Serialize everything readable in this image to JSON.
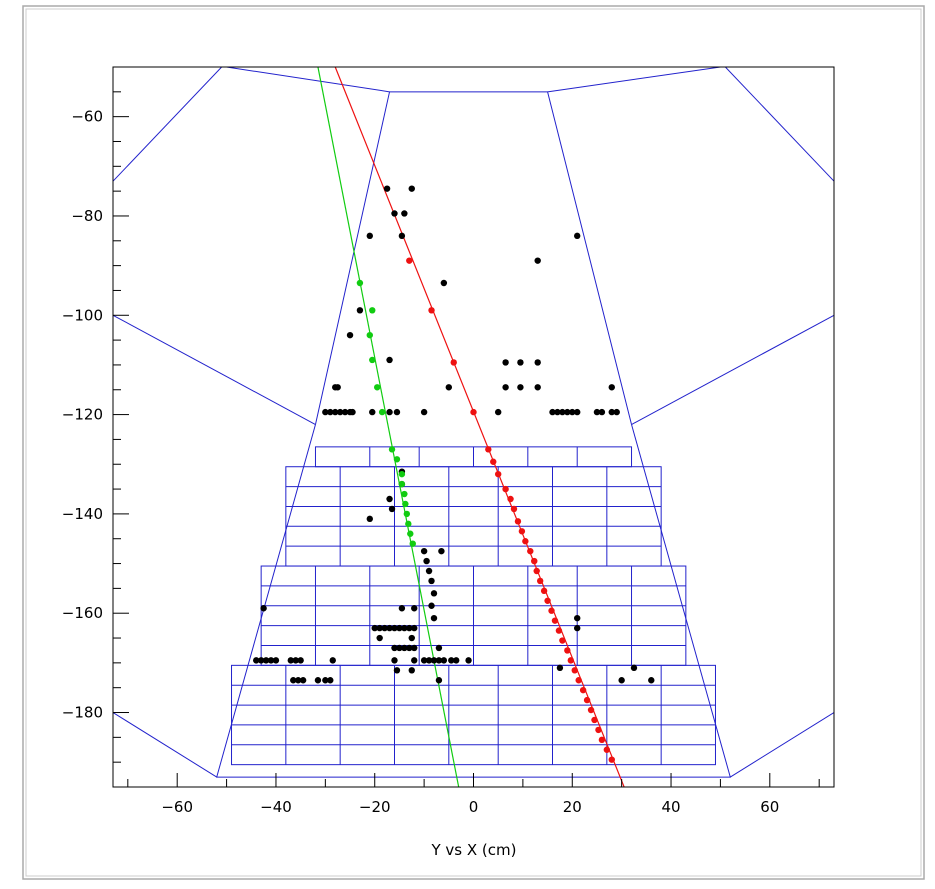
{
  "chart_data": {
    "type": "scatter",
    "xlabel": "Y vs X (cm)",
    "xlim": [
      -73,
      73
    ],
    "ylim": [
      -195,
      -50
    ],
    "xticks": [
      -60,
      -40,
      -20,
      0,
      20,
      40,
      60
    ],
    "yticks": [
      -60,
      -80,
      -100,
      -120,
      -140,
      -160,
      -180
    ],
    "colors": {
      "detector": "#2222cc",
      "fit_red": "#ee1111",
      "fit_green": "#11cc11",
      "hits": "#000000",
      "frame": "#aaaaaa"
    },
    "series": [
      {
        "color": "#000000",
        "points": [
          [
            -17.5,
            -74.5
          ],
          [
            -12.5,
            -74.5
          ],
          [
            -16,
            -79.5
          ],
          [
            -14,
            -79.5
          ],
          [
            -21,
            -84
          ],
          [
            -14.5,
            -84
          ],
          [
            13,
            -89
          ],
          [
            21,
            -84
          ],
          [
            -6,
            -93.5
          ],
          [
            -23,
            -99
          ],
          [
            -25,
            -104
          ],
          [
            -17,
            -109
          ],
          [
            -28,
            -114.5
          ],
          [
            -27.5,
            -114.5
          ],
          [
            -5,
            -114.5
          ],
          [
            6.5,
            -109.5
          ],
          [
            9.5,
            -109.5
          ],
          [
            13,
            -109.5
          ],
          [
            6.5,
            -114.5
          ],
          [
            9.5,
            -114.5
          ],
          [
            13,
            -114.5
          ],
          [
            28,
            -114.5
          ],
          [
            -30,
            -119.5
          ],
          [
            -29,
            -119.5
          ],
          [
            -28,
            -119.5
          ],
          [
            -27,
            -119.5
          ],
          [
            -26,
            -119.5
          ],
          [
            -25,
            -119.5
          ],
          [
            -24.5,
            -119.5
          ],
          [
            -20.5,
            -119.5
          ],
          [
            -17,
            -119.5
          ],
          [
            -15.5,
            -119.5
          ],
          [
            -10,
            -119.5
          ],
          [
            5,
            -119.5
          ],
          [
            16,
            -119.5
          ],
          [
            17,
            -119.5
          ],
          [
            18,
            -119.5
          ],
          [
            19,
            -119.5
          ],
          [
            20,
            -119.5
          ],
          [
            21,
            -119.5
          ],
          [
            25,
            -119.5
          ],
          [
            26,
            -119.5
          ],
          [
            28,
            -119.5
          ],
          [
            29,
            -119.5
          ],
          [
            -14.5,
            -131.5
          ],
          [
            -14.5,
            -134
          ],
          [
            -17,
            -137
          ],
          [
            -16.5,
            -139
          ],
          [
            -21,
            -141
          ],
          [
            -10,
            -147.5
          ],
          [
            -6.5,
            -147.5
          ],
          [
            -9.5,
            -149.5
          ],
          [
            -9,
            -151.5
          ],
          [
            -8.5,
            -153.5
          ],
          [
            -8,
            -156
          ],
          [
            -8.5,
            -158.5
          ],
          [
            -14.5,
            -159
          ],
          [
            -12,
            -159
          ],
          [
            -8,
            -161
          ],
          [
            -42.5,
            -159
          ],
          [
            -20,
            -163
          ],
          [
            -19,
            -163
          ],
          [
            -18,
            -163
          ],
          [
            -17,
            -163
          ],
          [
            -16,
            -163
          ],
          [
            -15,
            -163
          ],
          [
            -14,
            -163
          ],
          [
            -13,
            -163
          ],
          [
            -12,
            -163
          ],
          [
            -19,
            -165
          ],
          [
            -12.5,
            -165
          ],
          [
            -16,
            -167
          ],
          [
            -15,
            -167
          ],
          [
            -14,
            -167
          ],
          [
            -13,
            -167
          ],
          [
            -12,
            -167
          ],
          [
            -7,
            -167
          ],
          [
            -16,
            -169.5
          ],
          [
            -12,
            -169.5
          ],
          [
            -10,
            -169.5
          ],
          [
            -9,
            -169.5
          ],
          [
            -8,
            -169.5
          ],
          [
            -7,
            -169.5
          ],
          [
            -6,
            -169.5
          ],
          [
            -4.5,
            -169.5
          ],
          [
            -3.5,
            -169.5
          ],
          [
            -1,
            -169.5
          ],
          [
            -15.5,
            -171.5
          ],
          [
            -12.5,
            -171.5
          ],
          [
            -44,
            -169.5
          ],
          [
            -43,
            -169.5
          ],
          [
            -42,
            -169.5
          ],
          [
            -41,
            -169.5
          ],
          [
            -40,
            -169.5
          ],
          [
            -37,
            -169.5
          ],
          [
            -36,
            -169.5
          ],
          [
            -35,
            -169.5
          ],
          [
            -28.5,
            -169.5
          ],
          [
            -36.5,
            -173.5
          ],
          [
            -35.5,
            -173.5
          ],
          [
            -34.5,
            -173.5
          ],
          [
            -31.5,
            -173.5
          ],
          [
            -30,
            -173.5
          ],
          [
            -29,
            -173.5
          ],
          [
            -7,
            -173.5
          ],
          [
            17.5,
            -171
          ],
          [
            21,
            -161
          ],
          [
            21,
            -163
          ],
          [
            30,
            -173.5
          ],
          [
            32.5,
            -171
          ],
          [
            36,
            -173.5
          ]
        ]
      },
      {
        "color": "#ee1111",
        "points": [
          [
            -13,
            -89
          ],
          [
            -8.5,
            -99
          ],
          [
            -4,
            -109.5
          ],
          [
            0,
            -119.5
          ],
          [
            3,
            -127
          ],
          [
            4,
            -129.5
          ],
          [
            5,
            -132
          ],
          [
            6.5,
            -135
          ],
          [
            7.5,
            -137
          ],
          [
            8.2,
            -139
          ],
          [
            9,
            -141.5
          ],
          [
            9.8,
            -143.5
          ],
          [
            10.5,
            -145.5
          ],
          [
            11.5,
            -147.5
          ],
          [
            12.3,
            -149.5
          ],
          [
            12.8,
            -151.5
          ],
          [
            13.5,
            -153.5
          ],
          [
            14.3,
            -155.5
          ],
          [
            15,
            -157.5
          ],
          [
            15.8,
            -159.5
          ],
          [
            16.5,
            -161.5
          ],
          [
            17.3,
            -163.5
          ],
          [
            18,
            -165.5
          ],
          [
            19,
            -167.5
          ],
          [
            19.7,
            -169.5
          ],
          [
            20.5,
            -171.5
          ],
          [
            21.3,
            -173.5
          ],
          [
            22.2,
            -175.5
          ],
          [
            23,
            -177.5
          ],
          [
            23.8,
            -179.5
          ],
          [
            24.5,
            -181.5
          ],
          [
            25.3,
            -183.5
          ],
          [
            26,
            -185.5
          ],
          [
            27,
            -187.5
          ],
          [
            28,
            -189.5
          ]
        ]
      },
      {
        "color": "#11cc11",
        "points": [
          [
            -23,
            -93.5
          ],
          [
            -20.5,
            -99
          ],
          [
            -21,
            -104
          ],
          [
            -20.5,
            -109
          ],
          [
            -19.5,
            -114.5
          ],
          [
            -18.5,
            -119.5
          ],
          [
            -16.5,
            -127
          ],
          [
            -15.5,
            -129
          ],
          [
            -14.5,
            -132
          ],
          [
            -14.5,
            -134
          ],
          [
            -14,
            -136
          ],
          [
            -13.8,
            -138
          ],
          [
            -13.5,
            -140
          ],
          [
            -13.2,
            -142
          ],
          [
            -12.8,
            -144
          ],
          [
            -12.3,
            -146
          ]
        ]
      }
    ],
    "fit_lines": [
      {
        "color": "#ee1111",
        "x": [
          -28,
          30.5
        ],
        "y": [
          -50,
          -195
        ]
      },
      {
        "color": "#11cc11",
        "x": [
          -31.5,
          -3
        ],
        "y": [
          -50,
          -195
        ]
      }
    ]
  }
}
